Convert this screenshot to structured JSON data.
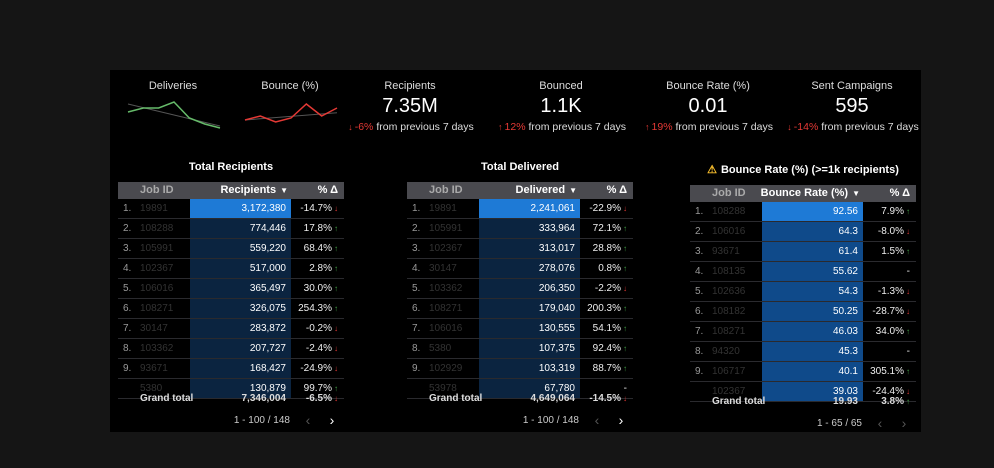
{
  "sparklines": [
    {
      "title": "Deliveries",
      "color": "#66bb6a",
      "values": [
        5,
        6,
        6,
        7.5,
        3.5,
        2,
        1
      ],
      "trend": [
        7,
        1.5
      ]
    },
    {
      "title": "Bounce (%)",
      "color": "#e53935",
      "values": [
        3,
        4,
        2.5,
        3.5,
        7,
        4,
        6
      ],
      "trend": [
        3,
        4.8
      ]
    }
  ],
  "kpis": [
    {
      "title": "Recipients",
      "value": "7.35M",
      "delta": "-6%",
      "dir": "down",
      "suffix": "from previous 7 days"
    },
    {
      "title": "Bounced",
      "value": "1.1K",
      "delta": "12%",
      "dir": "up",
      "suffix": "from previous 7 days"
    },
    {
      "title": "Bounce Rate (%)",
      "value": "0.01",
      "delta": "19%",
      "dir": "up",
      "suffix": "from previous 7 days"
    },
    {
      "title": "Sent Campaigns",
      "value": "595",
      "delta": "-14%",
      "dir": "down",
      "suffix": "from previous 7 days"
    }
  ],
  "tables": [
    {
      "title": "Total Recipients",
      "warning": false,
      "col_job": "Job ID",
      "col_value": "Recipients",
      "col_delta": "% Δ",
      "rows": [
        [
          "1.",
          "19891",
          "3,172,380",
          "-14.7%",
          "down"
        ],
        [
          "2.",
          "108288",
          "774,446",
          "17.8%",
          "up"
        ],
        [
          "3.",
          "105991",
          "559,220",
          "68.4%",
          "up"
        ],
        [
          "4.",
          "102367",
          "517,000",
          "2.8%",
          "up"
        ],
        [
          "5.",
          "106016",
          "365,497",
          "30.0%",
          "up"
        ],
        [
          "6.",
          "108271",
          "326,075",
          "254.3%",
          "up"
        ],
        [
          "7.",
          "30147",
          "283,872",
          "-0.2%",
          "down"
        ],
        [
          "8.",
          "103362",
          "207,727",
          "-2.4%",
          "down"
        ],
        [
          "9.",
          "93671",
          "168,427",
          "-24.9%",
          "down"
        ],
        [
          "",
          "5380",
          "130,879",
          "99.7%",
          "up"
        ]
      ],
      "total_label": "Grand total",
      "total_value": "7,346,004",
      "total_delta": "-6.5%",
      "total_dir": "down",
      "pagination": "1 - 100 / 148"
    },
    {
      "title": "Total Delivered",
      "warning": false,
      "col_job": "Job ID",
      "col_value": "Delivered",
      "col_delta": "% Δ",
      "rows": [
        [
          "1.",
          "19891",
          "2,241,061",
          "-22.9%",
          "down"
        ],
        [
          "2.",
          "105991",
          "333,964",
          "72.1%",
          "up"
        ],
        [
          "3.",
          "102367",
          "313,017",
          "28.8%",
          "up"
        ],
        [
          "4.",
          "30147",
          "278,076",
          "0.8%",
          "up"
        ],
        [
          "5.",
          "103362",
          "206,350",
          "-2.2%",
          "down"
        ],
        [
          "6.",
          "108271",
          "179,040",
          "200.3%",
          "up"
        ],
        [
          "7.",
          "106016",
          "130,555",
          "54.1%",
          "up"
        ],
        [
          "8.",
          "5380",
          "107,375",
          "92.4%",
          "up"
        ],
        [
          "9.",
          "102929",
          "103,319",
          "88.7%",
          "up"
        ],
        [
          "",
          "53978",
          "67,780",
          "-",
          ""
        ]
      ],
      "total_label": "Grand total",
      "total_value": "4,649,064",
      "total_delta": "-14.5%",
      "total_dir": "down",
      "pagination": "1 - 100 / 148"
    },
    {
      "title": "Bounce Rate (%) (>=1k recipients)",
      "warning": true,
      "col_job": "Job ID",
      "col_value": "Bounce Rate (%)",
      "col_delta": "% Δ",
      "rows": [
        [
          "1.",
          "108288",
          "92.56",
          "7.9%",
          "up"
        ],
        [
          "2.",
          "106016",
          "64.3",
          "-8.0%",
          "down"
        ],
        [
          "3.",
          "93671",
          "61.4",
          "1.5%",
          "up"
        ],
        [
          "4.",
          "108135",
          "55.62",
          "-",
          ""
        ],
        [
          "5.",
          "102636",
          "54.3",
          "-1.3%",
          "down"
        ],
        [
          "6.",
          "108182",
          "50.25",
          "-28.7%",
          "down"
        ],
        [
          "7.",
          "108271",
          "46.03",
          "34.0%",
          "up"
        ],
        [
          "8.",
          "94320",
          "45.3",
          "-",
          ""
        ],
        [
          "9.",
          "106717",
          "40.1",
          "305.1%",
          "up"
        ],
        [
          "",
          "102367",
          "39.03",
          "-24.4%",
          "down"
        ]
      ],
      "total_label": "Grand total",
      "total_value": "19.93",
      "total_delta": "3.8%",
      "total_dir": "up",
      "pagination": "1 - 65 / 65"
    }
  ],
  "colors": {
    "bar_top": "#1e7ad6",
    "bar_dim": "#0b2440",
    "bar_rate": "#0f4a8a",
    "up": "#43a047",
    "down": "#e53935"
  }
}
